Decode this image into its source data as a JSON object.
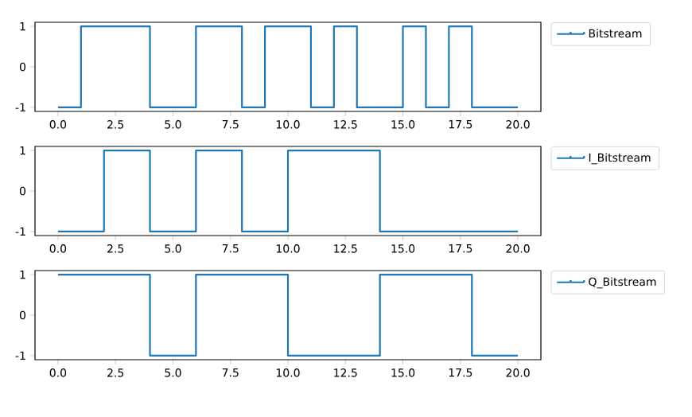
{
  "chart_data": [
    {
      "type": "step",
      "series": [
        {
          "name": "Bitstream",
          "color": "#1f77b4",
          "x": [
            0,
            1,
            4,
            6,
            8,
            9,
            11,
            12,
            13,
            15,
            16,
            17,
            18,
            20
          ],
          "values": [
            -1,
            1,
            -1,
            1,
            -1,
            1,
            -1,
            1,
            -1,
            1,
            -1,
            1,
            -1,
            -1
          ]
        }
      ],
      "xlim": [
        -1,
        21
      ],
      "ylim": [
        -1.1,
        1.1
      ],
      "xticks": [
        {
          "value": 0,
          "label": "0.0"
        },
        {
          "value": 2.5,
          "label": "2.5"
        },
        {
          "value": 5,
          "label": "5.0"
        },
        {
          "value": 7.5,
          "label": "7.5"
        },
        {
          "value": 10,
          "label": "10.0"
        },
        {
          "value": 12.5,
          "label": "12.5"
        },
        {
          "value": 15,
          "label": "15.0"
        },
        {
          "value": 17.5,
          "label": "17.5"
        },
        {
          "value": 20,
          "label": "20.0"
        }
      ],
      "yticks": [
        -1,
        0,
        1
      ],
      "legend": "top right"
    },
    {
      "type": "step",
      "series": [
        {
          "name": "I_Bitstream",
          "color": "#1f77b4",
          "x": [
            0,
            2,
            4,
            6,
            8,
            10,
            14,
            20
          ],
          "values": [
            -1,
            1,
            -1,
            1,
            -1,
            1,
            -1,
            -1
          ]
        }
      ],
      "xlim": [
        -1,
        21
      ],
      "ylim": [
        -1.1,
        1.1
      ],
      "xticks": [
        {
          "value": 0,
          "label": "0.0"
        },
        {
          "value": 2.5,
          "label": "2.5"
        },
        {
          "value": 5,
          "label": "5.0"
        },
        {
          "value": 7.5,
          "label": "7.5"
        },
        {
          "value": 10,
          "label": "10.0"
        },
        {
          "value": 12.5,
          "label": "12.5"
        },
        {
          "value": 15,
          "label": "15.0"
        },
        {
          "value": 17.5,
          "label": "17.5"
        },
        {
          "value": 20,
          "label": "20.0"
        }
      ],
      "yticks": [
        -1,
        0,
        1
      ],
      "legend": "top right"
    },
    {
      "type": "step",
      "series": [
        {
          "name": "Q_Bitstream",
          "color": "#1f77b4",
          "x": [
            0,
            4,
            6,
            10,
            14,
            18,
            20
          ],
          "values": [
            1,
            -1,
            1,
            -1,
            1,
            -1,
            -1
          ]
        }
      ],
      "xlim": [
        -1,
        21
      ],
      "ylim": [
        -1.1,
        1.1
      ],
      "xticks": [
        {
          "value": 0,
          "label": "0.0"
        },
        {
          "value": 2.5,
          "label": "2.5"
        },
        {
          "value": 5,
          "label": "5.0"
        },
        {
          "value": 7.5,
          "label": "7.5"
        },
        {
          "value": 10,
          "label": "10.0"
        },
        {
          "value": 12.5,
          "label": "12.5"
        },
        {
          "value": 15,
          "label": "15.0"
        },
        {
          "value": 17.5,
          "label": "17.5"
        },
        {
          "value": 20,
          "label": "20.0"
        }
      ],
      "yticks": [
        -1,
        0,
        1
      ],
      "legend": "top right"
    }
  ]
}
